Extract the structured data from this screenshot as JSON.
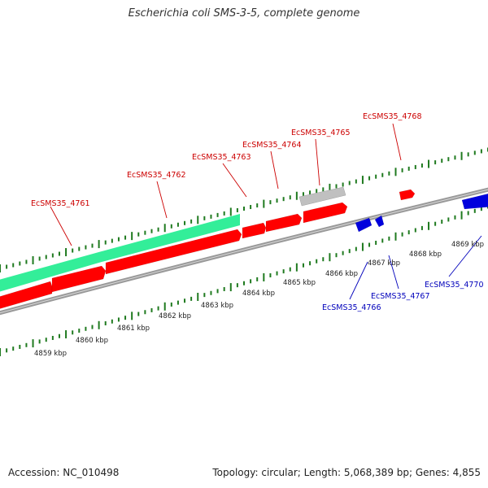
{
  "title": "Escherichia coli SMS-3-5, complete genome",
  "footer": {
    "accession": "Accession: NC_010498",
    "summary": "Topology: circular; Length: 5,068,389 bp; Genes: 4,855"
  },
  "colors": {
    "forward_gene": "#ff0000",
    "reverse_gene": "#0000dd",
    "pseudo_gene": "#c0c0c0",
    "rna_feature": "#33ee99",
    "tick": "#1f7a1f",
    "forward_label": "#cc0000",
    "reverse_label": "#0000bb",
    "backbone": "#999999"
  },
  "position_labels": [
    "4859 kbp",
    "4860 kbp",
    "4861 kbp",
    "4862 kbp",
    "4863 kbp",
    "4864 kbp",
    "4865 kbp",
    "4866 kbp",
    "4867 kbp",
    "4868 kbp",
    "4869 kbp"
  ],
  "forward_gene_labels": [
    "EcSMS35_4761",
    "EcSMS35_4762",
    "EcSMS35_4763",
    "EcSMS35_4764",
    "EcSMS35_4765",
    "EcSMS35_4768"
  ],
  "reverse_gene_labels": [
    "EcSMS35_4766",
    "EcSMS35_4767",
    "EcSMS35_4770"
  ]
}
